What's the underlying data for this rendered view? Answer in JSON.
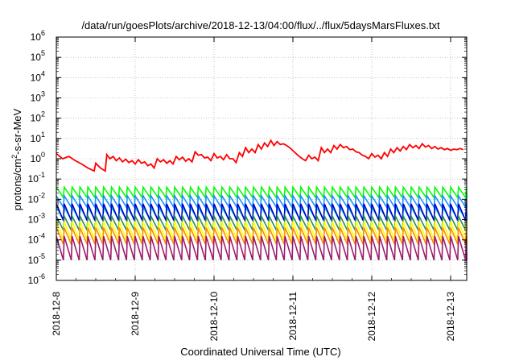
{
  "chart_data": {
    "type": "line",
    "title": "/data/run/goesPlots/archive/2018-12-13/04:00/flux/../flux/5daysMarsFluxes.txt",
    "xlabel": "Coordinated Universal Time (UTC)",
    "ylabel_main": "protons/cm",
    "ylabel_sup": "2",
    "ylabel_tail": "-s-sr-MeV",
    "yscale": "log",
    "ylim": [
      1e-06,
      1000000.0
    ],
    "xlim": [
      "2018-12-08 00:00",
      "2018-12-13 04:00"
    ],
    "grid": true,
    "legend": "none",
    "y_ticks": [
      {
        "base": "10",
        "exp": "-6"
      },
      {
        "base": "10",
        "exp": "-5"
      },
      {
        "base": "10",
        "exp": "-4"
      },
      {
        "base": "10",
        "exp": "-3"
      },
      {
        "base": "10",
        "exp": "-2"
      },
      {
        "base": "10",
        "exp": "-1"
      },
      {
        "base": "10",
        "exp": "0"
      },
      {
        "base": "10",
        "exp": "1"
      },
      {
        "base": "10",
        "exp": "2"
      },
      {
        "base": "10",
        "exp": "3"
      },
      {
        "base": "10",
        "exp": "4"
      },
      {
        "base": "10",
        "exp": "5"
      },
      {
        "base": "10",
        "exp": "6"
      }
    ],
    "x_ticks": [
      "2018-12-8",
      "2018-12-9",
      "2018-12-10",
      "2018-12-11",
      "2018-12-12",
      "2018-12-13"
    ],
    "red_series": {
      "color": "#ff0000",
      "x_days": [
        0,
        0.08,
        0.16,
        0.24,
        0.32,
        0.4,
        0.48,
        0.5,
        0.56,
        0.62,
        0.64,
        0.68,
        0.72,
        0.76,
        0.8,
        0.84,
        0.88,
        0.92,
        0.96,
        1.0,
        1.04,
        1.08,
        1.12,
        1.16,
        1.2,
        1.24,
        1.28,
        1.32,
        1.36,
        1.4,
        1.44,
        1.48,
        1.52,
        1.56,
        1.6,
        1.64,
        1.68,
        1.72,
        1.76,
        1.8,
        1.84,
        1.88,
        1.92,
        1.96,
        2.0,
        2.04,
        2.08,
        2.12,
        2.16,
        2.2,
        2.24,
        2.28,
        2.32,
        2.36,
        2.4,
        2.44,
        2.48,
        2.52,
        2.56,
        2.6,
        2.64,
        2.68,
        2.72,
        2.76,
        2.8,
        2.84,
        2.88,
        2.92,
        2.96,
        3.0,
        3.04,
        3.08,
        3.12,
        3.16,
        3.2,
        3.24,
        3.28,
        3.32,
        3.36,
        3.4,
        3.44,
        3.48,
        3.52,
        3.56,
        3.6,
        3.64,
        3.68,
        3.72,
        3.76,
        3.8,
        3.84,
        3.88,
        3.92,
        3.96,
        4.0,
        4.04,
        4.08,
        4.12,
        4.16,
        4.2,
        4.24,
        4.28,
        4.32,
        4.36,
        4.4,
        4.44,
        4.48,
        4.52,
        4.56,
        4.6,
        4.64,
        4.68,
        4.72,
        4.76,
        4.8,
        4.84,
        4.88,
        4.92,
        4.96,
        5.0,
        5.04,
        5.08,
        5.12,
        5.16
      ],
      "values": [
        1.8,
        1.0,
        1.3,
        0.8,
        0.55,
        0.35,
        0.25,
        0.6,
        0.35,
        0.25,
        1.6,
        1.0,
        1.3,
        0.8,
        1.1,
        0.7,
        0.95,
        0.65,
        0.8,
        0.55,
        0.9,
        0.6,
        0.7,
        0.45,
        0.55,
        0.35,
        1.0,
        0.7,
        0.9,
        0.6,
        0.8,
        0.55,
        1.3,
        0.9,
        1.2,
        0.75,
        1.0,
        0.7,
        2.2,
        1.5,
        1.6,
        1.1,
        1.2,
        0.8,
        1.8,
        1.1,
        1.3,
        0.9,
        1.6,
        1.0,
        1.0,
        0.65,
        2.0,
        1.3,
        3.5,
        2.0,
        3.0,
        2.0,
        5.0,
        3.0,
        6.0,
        4.0,
        8.0,
        4.5,
        7.0,
        5.0,
        5.5,
        4.5,
        3.5,
        2.5,
        1.8,
        1.3,
        1.0,
        0.8,
        1.5,
        1.0,
        1.2,
        0.8,
        3.5,
        2.0,
        3.0,
        2.0,
        4.5,
        3.0,
        5.0,
        3.5,
        4.0,
        2.8,
        3.0,
        2.2,
        2.0,
        1.5,
        1.3,
        1.0,
        1.8,
        1.2,
        1.5,
        1.0,
        2.0,
        1.3,
        3.0,
        2.0,
        3.5,
        2.4,
        4.0,
        2.8,
        5.0,
        3.5,
        4.5,
        3.2,
        5.5,
        3.8,
        4.5,
        3.2,
        4.0,
        3.0,
        3.5,
        2.8,
        3.2,
        2.6,
        3.0,
        2.8,
        3.2,
        2.8
      ]
    },
    "sawtooth_series": [
      {
        "color": "#00ff00",
        "peak": 0.04,
        "trough": 0.012
      },
      {
        "color": "#1e90ff",
        "peak": 0.015,
        "trough": 0.004
      },
      {
        "color": "#00ced1",
        "peak": 0.004,
        "trough": 0.001
      },
      {
        "color": "#0000cd",
        "peak": 0.006,
        "trough": 0.0009
      },
      {
        "color": "#2e8b57",
        "peak": 0.0015,
        "trough": 0.0003
      },
      {
        "color": "#ffff00",
        "peak": 0.0008,
        "trough": 0.0001
      },
      {
        "color": "#ff8c00",
        "peak": 0.0004,
        "trough": 6e-05
      },
      {
        "color": "#9b1b6b",
        "peak": 0.00015,
        "trough": 1e-05
      }
    ],
    "sawtooth_period_days": 0.1
  }
}
